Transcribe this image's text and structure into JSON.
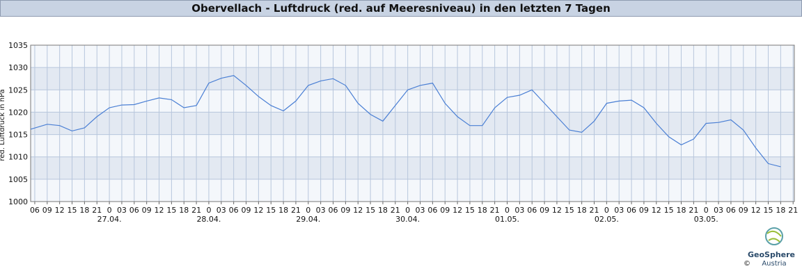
{
  "chart_data": {
    "type": "line",
    "title": "Obervellach - Luftdruck (red. auf Meeresniveau) in den letzten 7 Tagen",
    "y_label": "red. Luftdruck in hPa",
    "xlim": [
      5,
      189.3
    ],
    "xticks": [
      {
        "value": 6,
        "label": "06"
      },
      {
        "value": 9,
        "label": "09"
      },
      {
        "value": 12,
        "label": "12"
      },
      {
        "value": 15,
        "label": "15"
      },
      {
        "value": 18,
        "label": "18"
      },
      {
        "value": 21,
        "label": "21"
      },
      {
        "value": 24,
        "label": "0"
      },
      {
        "value": 27,
        "label": "03"
      },
      {
        "value": 30,
        "label": "06"
      },
      {
        "value": 33,
        "label": "09"
      },
      {
        "value": 36,
        "label": "12"
      },
      {
        "value": 39,
        "label": "15"
      },
      {
        "value": 42,
        "label": "18"
      },
      {
        "value": 45,
        "label": "21"
      },
      {
        "value": 48,
        "label": "0"
      },
      {
        "value": 51,
        "label": "03"
      },
      {
        "value": 54,
        "label": "06"
      },
      {
        "value": 57,
        "label": "09"
      },
      {
        "value": 60,
        "label": "12"
      },
      {
        "value": 63,
        "label": "15"
      },
      {
        "value": 66,
        "label": "18"
      },
      {
        "value": 69,
        "label": "21"
      },
      {
        "value": 72,
        "label": "0"
      },
      {
        "value": 75,
        "label": "03"
      },
      {
        "value": 78,
        "label": "06"
      },
      {
        "value": 81,
        "label": "09"
      },
      {
        "value": 84,
        "label": "12"
      },
      {
        "value": 87,
        "label": "15"
      },
      {
        "value": 90,
        "label": "18"
      },
      {
        "value": 93,
        "label": "21"
      },
      {
        "value": 96,
        "label": "0"
      },
      {
        "value": 99,
        "label": "03"
      },
      {
        "value": 102,
        "label": "06"
      },
      {
        "value": 105,
        "label": "09"
      },
      {
        "value": 108,
        "label": "12"
      },
      {
        "value": 111,
        "label": "15"
      },
      {
        "value": 114,
        "label": "18"
      },
      {
        "value": 117,
        "label": "21"
      },
      {
        "value": 120,
        "label": "0"
      },
      {
        "value": 123,
        "label": "03"
      },
      {
        "value": 126,
        "label": "06"
      },
      {
        "value": 129,
        "label": "09"
      },
      {
        "value": 132,
        "label": "12"
      },
      {
        "value": 135,
        "label": "15"
      },
      {
        "value": 138,
        "label": "18"
      },
      {
        "value": 141,
        "label": "21"
      },
      {
        "value": 144,
        "label": "0"
      },
      {
        "value": 147,
        "label": "03"
      },
      {
        "value": 150,
        "label": "06"
      },
      {
        "value": 153,
        "label": "09"
      },
      {
        "value": 156,
        "label": "12"
      },
      {
        "value": 159,
        "label": "15"
      },
      {
        "value": 162,
        "label": "18"
      },
      {
        "value": 165,
        "label": "21"
      },
      {
        "value": 168,
        "label": "0"
      },
      {
        "value": 171,
        "label": "03"
      },
      {
        "value": 174,
        "label": "06"
      },
      {
        "value": 177,
        "label": "09"
      },
      {
        "value": 180,
        "label": "12"
      },
      {
        "value": 183,
        "label": "15"
      },
      {
        "value": 186,
        "label": "18"
      },
      {
        "value": 189,
        "label": "21"
      }
    ],
    "date_labels": [
      {
        "value": 24,
        "label": "27.04."
      },
      {
        "value": 48,
        "label": "28.04."
      },
      {
        "value": 72,
        "label": "29.04."
      },
      {
        "value": 96,
        "label": "30.04."
      },
      {
        "value": 120,
        "label": "01.05."
      },
      {
        "value": 144,
        "label": "02.05."
      },
      {
        "value": 168,
        "label": "03.05."
      }
    ],
    "ylim": [
      1000,
      1035
    ],
    "yticks": [
      1000,
      1005,
      1010,
      1015,
      1020,
      1025,
      1030,
      1035
    ],
    "grid": true,
    "series": [
      {
        "color": "#4a7fd4",
        "x": [
          5,
          9,
          12,
          15,
          18,
          21,
          24,
          27,
          30,
          33,
          36,
          39,
          42,
          45,
          48,
          51,
          54,
          57,
          60,
          63,
          66,
          69,
          72,
          75,
          78,
          81,
          84,
          87,
          90,
          93,
          96,
          99,
          102,
          105,
          108,
          111,
          114,
          117,
          120,
          123,
          126,
          129,
          132,
          135,
          138,
          141,
          144,
          147,
          150,
          153,
          156,
          159,
          162,
          165,
          168,
          171,
          174,
          177,
          180,
          183,
          186
        ],
        "values": [
          1016.2,
          1017.3,
          1017.0,
          1015.8,
          1016.5,
          1019,
          1021,
          1021.6,
          1021.7,
          1022.5,
          1023.2,
          1022.8,
          1021,
          1021.5,
          1026.5,
          1027.6,
          1028.2,
          1026,
          1023.5,
          1021.5,
          1020.3,
          1022.5,
          1026,
          1027,
          1027.5,
          1026,
          1022,
          1019.5,
          1018,
          1021.5,
          1025,
          1026,
          1026.5,
          1022,
          1019,
          1017,
          1017,
          1021,
          1023.3,
          1023.8,
          1025,
          1022,
          1019,
          1016,
          1015.5,
          1018,
          1022,
          1022.5,
          1022.7,
          1021,
          1017.5,
          1014.5,
          1012.7,
          1014,
          1017.5,
          1017.7,
          1018.3,
          1016,
          1012,
          1008.5,
          1007.8
        ]
      }
    ],
    "logo": {
      "name": "GeoSphere",
      "sub": "Austria",
      "copyright": "©"
    }
  }
}
